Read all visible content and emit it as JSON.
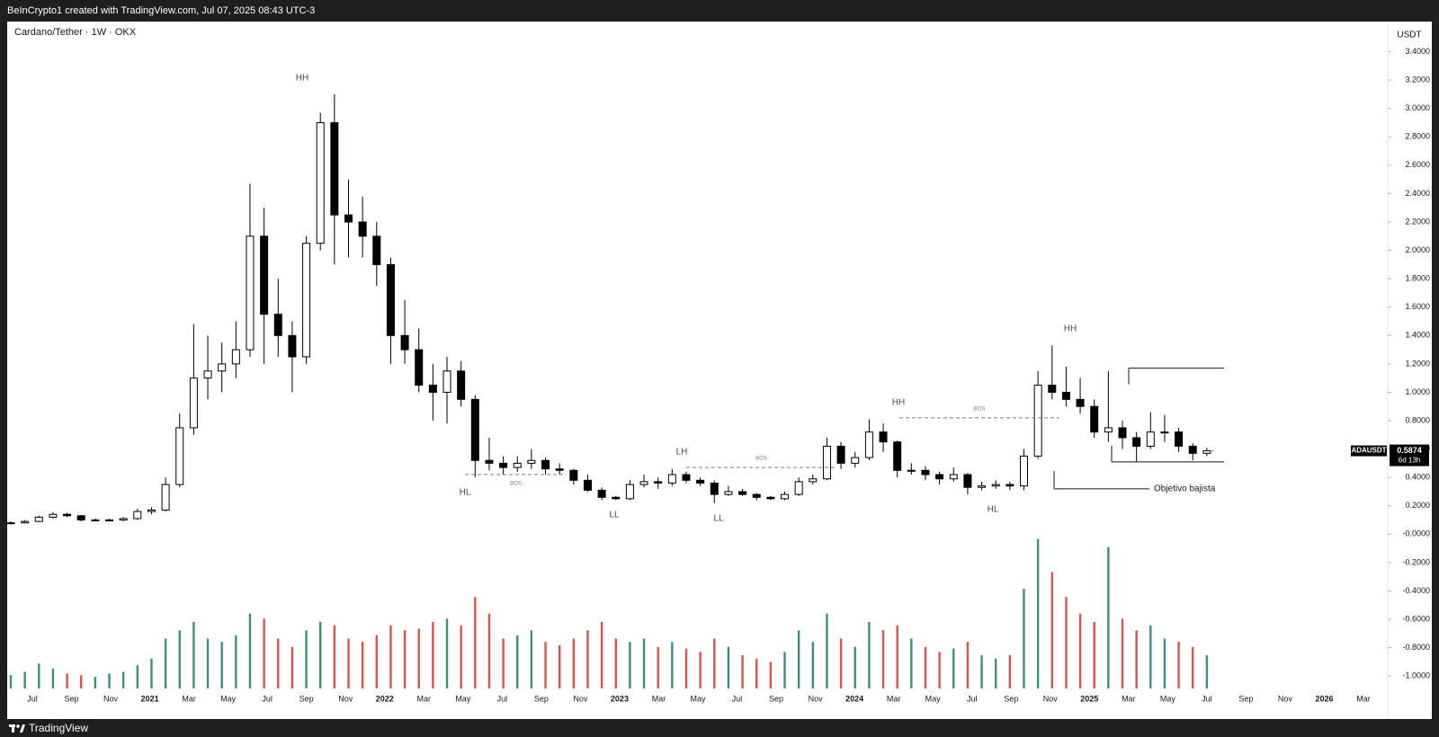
{
  "header": "BeInCrypto1 created with TradingView.com, Jul 07, 2025 08:43 UTC-3",
  "footer": "TradingView",
  "chart_data": {
    "type": "candlestick",
    "title": "Cardano/Tether · 1W · OKX",
    "ylabel": "USDT",
    "up_color": "#ffffff",
    "down_color": "#000000",
    "volume_up_color": "#3d8f7e",
    "volume_down_color": "#d9534f",
    "ylim": [
      -1.1,
      3.6
    ],
    "yticks": [
      {
        "value": 3.4,
        "label": "3.4000"
      },
      {
        "value": 3.2,
        "label": "3.2000"
      },
      {
        "value": 3.0,
        "label": "3.0000"
      },
      {
        "value": 2.8,
        "label": "2.8000"
      },
      {
        "value": 2.6,
        "label": "2.6000"
      },
      {
        "value": 2.4,
        "label": "2.4000"
      },
      {
        "value": 2.2,
        "label": "2.2000"
      },
      {
        "value": 2.0,
        "label": "2.0000"
      },
      {
        "value": 1.8,
        "label": "1.8000"
      },
      {
        "value": 1.6,
        "label": "1.6000"
      },
      {
        "value": 1.4,
        "label": "1.4000"
      },
      {
        "value": 1.2,
        "label": "1.2000"
      },
      {
        "value": 1.0,
        "label": "1.0000"
      },
      {
        "value": 0.8,
        "label": "0.8000"
      },
      {
        "value": 0.6,
        "label": "0.6000"
      },
      {
        "value": 0.4,
        "label": "0.4000"
      },
      {
        "value": 0.2,
        "label": "0.2000"
      },
      {
        "value": 0,
        "label": "-0.0000"
      },
      {
        "value": -0.2,
        "label": "-0.2000"
      },
      {
        "value": -0.4,
        "label": "-0.4000"
      },
      {
        "value": -0.6,
        "label": "-0.6000"
      },
      {
        "value": -0.8,
        "label": "-0.8000"
      },
      {
        "value": -1.0,
        "label": "-1.0000"
      }
    ],
    "xtick_labels": [
      "Jul",
      "Sep",
      "Nov",
      "2021",
      "Mar",
      "May",
      "Jul",
      "Sep",
      "Nov",
      "2022",
      "Mar",
      "May",
      "Jul",
      "Sep",
      "Nov",
      "2023",
      "Mar",
      "May",
      "Jul",
      "Sep",
      "Nov",
      "2024",
      "Mar",
      "May",
      "Jul",
      "Sep",
      "Nov",
      "2025",
      "Mar",
      "May",
      "Jul",
      "Sep",
      "Nov",
      "2026",
      "Mar"
    ],
    "ohlc": [
      [
        0.075,
        0.09,
        0.07,
        0.08
      ],
      [
        0.08,
        0.1,
        0.075,
        0.09
      ],
      [
        0.09,
        0.13,
        0.085,
        0.12
      ],
      [
        0.12,
        0.155,
        0.11,
        0.14
      ],
      [
        0.14,
        0.15,
        0.12,
        0.13
      ],
      [
        0.13,
        0.135,
        0.09,
        0.1
      ],
      [
        0.1,
        0.11,
        0.09,
        0.1
      ],
      [
        0.1,
        0.11,
        0.09,
        0.1
      ],
      [
        0.1,
        0.12,
        0.09,
        0.11
      ],
      [
        0.11,
        0.18,
        0.1,
        0.16
      ],
      [
        0.16,
        0.19,
        0.14,
        0.17
      ],
      [
        0.17,
        0.4,
        0.16,
        0.35
      ],
      [
        0.35,
        0.85,
        0.33,
        0.75
      ],
      [
        0.75,
        1.48,
        0.7,
        1.1
      ],
      [
        1.1,
        1.4,
        0.95,
        1.15
      ],
      [
        1.15,
        1.35,
        1.0,
        1.2
      ],
      [
        1.2,
        1.5,
        1.1,
        1.3
      ],
      [
        1.3,
        2.47,
        1.25,
        2.1
      ],
      [
        2.1,
        2.3,
        1.2,
        1.55
      ],
      [
        1.55,
        1.8,
        1.25,
        1.4
      ],
      [
        1.4,
        1.5,
        1.0,
        1.25
      ],
      [
        1.25,
        2.1,
        1.2,
        2.05
      ],
      [
        2.05,
        2.97,
        2.0,
        2.9
      ],
      [
        2.9,
        3.1,
        1.9,
        2.25
      ],
      [
        2.25,
        2.5,
        1.95,
        2.2
      ],
      [
        2.2,
        2.38,
        1.95,
        2.1
      ],
      [
        2.1,
        2.2,
        1.75,
        1.9
      ],
      [
        1.9,
        1.95,
        1.2,
        1.4
      ],
      [
        1.4,
        1.65,
        1.2,
        1.3
      ],
      [
        1.3,
        1.45,
        1.0,
        1.05
      ],
      [
        1.05,
        1.2,
        0.8,
        1.0
      ],
      [
        1.0,
        1.25,
        0.78,
        1.15
      ],
      [
        1.15,
        1.22,
        0.9,
        0.95
      ],
      [
        0.95,
        0.98,
        0.4,
        0.52
      ],
      [
        0.52,
        0.68,
        0.45,
        0.5
      ],
      [
        0.5,
        0.55,
        0.42,
        0.47
      ],
      [
        0.47,
        0.55,
        0.44,
        0.5
      ],
      [
        0.5,
        0.6,
        0.46,
        0.52
      ],
      [
        0.52,
        0.54,
        0.42,
        0.46
      ],
      [
        0.46,
        0.5,
        0.42,
        0.45
      ],
      [
        0.45,
        0.46,
        0.35,
        0.38
      ],
      [
        0.38,
        0.42,
        0.3,
        0.31
      ],
      [
        0.31,
        0.33,
        0.24,
        0.26
      ],
      [
        0.26,
        0.27,
        0.24,
        0.25
      ],
      [
        0.25,
        0.38,
        0.24,
        0.35
      ],
      [
        0.35,
        0.42,
        0.33,
        0.37
      ],
      [
        0.37,
        0.4,
        0.32,
        0.36
      ],
      [
        0.36,
        0.46,
        0.34,
        0.42
      ],
      [
        0.42,
        0.44,
        0.36,
        0.38
      ],
      [
        0.38,
        0.4,
        0.34,
        0.36
      ],
      [
        0.36,
        0.38,
        0.22,
        0.28
      ],
      [
        0.28,
        0.34,
        0.27,
        0.3
      ],
      [
        0.3,
        0.32,
        0.27,
        0.28
      ],
      [
        0.28,
        0.29,
        0.24,
        0.26
      ],
      [
        0.26,
        0.27,
        0.24,
        0.25
      ],
      [
        0.25,
        0.3,
        0.24,
        0.28
      ],
      [
        0.28,
        0.4,
        0.27,
        0.37
      ],
      [
        0.37,
        0.42,
        0.35,
        0.39
      ],
      [
        0.39,
        0.68,
        0.38,
        0.62
      ],
      [
        0.62,
        0.65,
        0.46,
        0.5
      ],
      [
        0.5,
        0.58,
        0.47,
        0.54
      ],
      [
        0.54,
        0.81,
        0.52,
        0.72
      ],
      [
        0.72,
        0.78,
        0.58,
        0.65
      ],
      [
        0.65,
        0.66,
        0.4,
        0.45
      ],
      [
        0.45,
        0.5,
        0.42,
        0.45
      ],
      [
        0.45,
        0.48,
        0.38,
        0.42
      ],
      [
        0.42,
        0.44,
        0.35,
        0.39
      ],
      [
        0.39,
        0.47,
        0.37,
        0.42
      ],
      [
        0.42,
        0.43,
        0.28,
        0.33
      ],
      [
        0.33,
        0.37,
        0.31,
        0.34
      ],
      [
        0.34,
        0.38,
        0.32,
        0.35
      ],
      [
        0.35,
        0.37,
        0.31,
        0.34
      ],
      [
        0.34,
        0.6,
        0.31,
        0.55
      ],
      [
        0.55,
        1.15,
        0.53,
        1.05
      ],
      [
        1.05,
        1.33,
        0.95,
        1.0
      ],
      [
        1.0,
        1.18,
        0.9,
        0.95
      ],
      [
        0.95,
        1.1,
        0.85,
        0.9
      ],
      [
        0.9,
        0.95,
        0.68,
        0.72
      ],
      [
        0.72,
        1.15,
        0.65,
        0.75
      ],
      [
        0.75,
        0.8,
        0.6,
        0.68
      ],
      [
        0.68,
        0.72,
        0.51,
        0.62
      ],
      [
        0.62,
        0.86,
        0.6,
        0.72
      ],
      [
        0.72,
        0.84,
        0.65,
        0.72
      ],
      [
        0.72,
        0.75,
        0.58,
        0.62
      ],
      [
        0.62,
        0.64,
        0.52,
        0.57
      ],
      [
        0.57,
        0.61,
        0.55,
        0.5874
      ]
    ],
    "volume": [
      8,
      10,
      15,
      12,
      9,
      8,
      7,
      9,
      10,
      14,
      18,
      30,
      35,
      40,
      30,
      28,
      32,
      45,
      42,
      30,
      25,
      35,
      40,
      38,
      30,
      28,
      32,
      38,
      35,
      36,
      40,
      42,
      38,
      55,
      45,
      30,
      32,
      35,
      28,
      26,
      30,
      35,
      40,
      30,
      28,
      30,
      25,
      28,
      24,
      22,
      30,
      25,
      20,
      18,
      16,
      22,
      35,
      28,
      45,
      30,
      25,
      40,
      35,
      38,
      30,
      25,
      22,
      24,
      28,
      20,
      18,
      20,
      60,
      90,
      70,
      55,
      45,
      40,
      85,
      42,
      35,
      38,
      30,
      28,
      25,
      20
    ],
    "volume_max": 100,
    "annotations": [
      "HH",
      "HL",
      "LL",
      "LH",
      "LL",
      "HH",
      "HL",
      "HH"
    ],
    "bos_levels": [
      {
        "label": "BOS",
        "value": 0.42
      },
      {
        "label": "BOS",
        "value": 0.47
      },
      {
        "label": "BOS",
        "value": 0.82
      }
    ],
    "range_box": {
      "top": 1.17,
      "bottom": 0.51
    },
    "target": {
      "label": "Objetivo bajista",
      "value": 0.32
    },
    "last_price": {
      "symbol": "ADAUSDT",
      "value": 0.5874,
      "countdown": "6d 13h"
    }
  }
}
